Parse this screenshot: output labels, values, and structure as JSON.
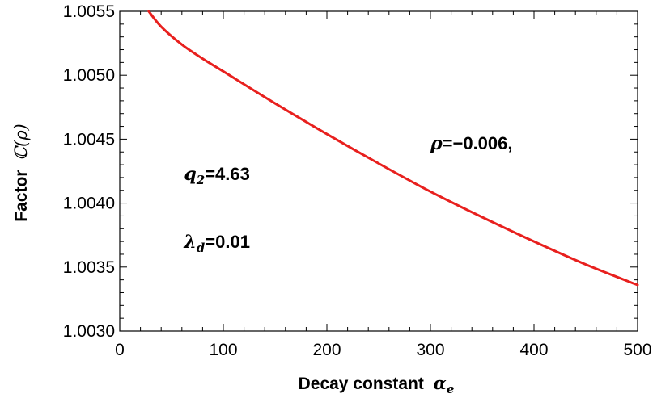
{
  "chart_data": {
    "type": "line",
    "title": "",
    "xlabel": "Decay constant",
    "xlabel_symbol": "α",
    "xlabel_sub": "e",
    "ylabel": "Factor",
    "ylabel_symbol": "ℂ(ρ)",
    "xlim": [
      0,
      500
    ],
    "ylim": [
      1.003,
      1.0055
    ],
    "x_ticks": [
      0,
      100,
      200,
      300,
      400,
      500
    ],
    "x_tick_labels": [
      "0",
      "100",
      "200",
      "300",
      "400",
      "500"
    ],
    "y_ticks": [
      1.003,
      1.0035,
      1.004,
      1.0045,
      1.005,
      1.0055
    ],
    "y_tick_labels": [
      "1.0030",
      "1.0035",
      "1.0040",
      "1.0045",
      "1.0050",
      "1.0055"
    ],
    "grid": false,
    "series": [
      {
        "color": "#e8201e",
        "x": [
          28,
          40,
          60,
          80,
          100,
          150,
          200,
          250,
          300,
          350,
          400,
          450,
          500
        ],
        "y": [
          1.0055,
          1.00538,
          1.00524,
          1.00513,
          1.00503,
          1.00478,
          1.00454,
          1.00431,
          1.00409,
          1.00389,
          1.0037,
          1.00352,
          1.00336
        ]
      }
    ],
    "annotations": [
      {
        "lines": [
          {
            "main": "ρ",
            "sub": "",
            "rest": "=−0.006,"
          }
        ],
        "x": 300,
        "y": 1.00442
      },
      {
        "lines": [
          {
            "main": "q",
            "sub": "2",
            "rest": "=4.63"
          }
        ],
        "x": 62,
        "y": 1.00418
      },
      {
        "lines": [
          {
            "main": "λ",
            "sub": "d",
            "rest": "=0.01"
          }
        ],
        "x": 62,
        "y": 1.00365
      }
    ]
  }
}
